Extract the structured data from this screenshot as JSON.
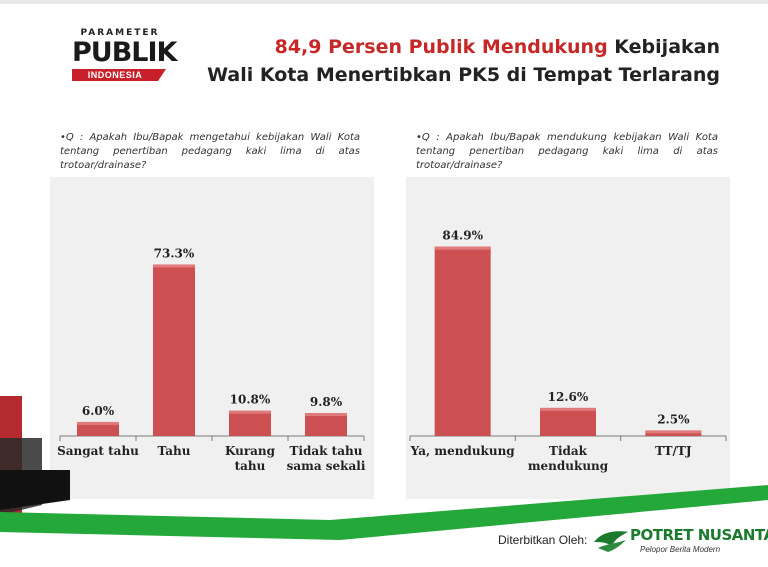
{
  "header": {
    "logo": {
      "kicker": "PARAMETER",
      "wordmark": "PUBLIK",
      "band": "INDONESIA"
    },
    "title_highlight": "84,9 Persen Publik Mendukung",
    "title_rest": " Kebijakan",
    "title_line2": "Wali Kota Menertibkan PK5 di Tempat Terlarang"
  },
  "left": {
    "question": "•Q : Apakah Ibu/Bapak mengetahui kebijakan Wali Kota tentang penertiban pedagang kaki lima di atas trotoar/drainase?"
  },
  "right": {
    "question": "•Q : Apakah Ibu/Bapak mendukung kebijakan Wali Kota tentang penertiban pedagang kaki lima di atas trotoar/drainase?"
  },
  "chart_data": [
    {
      "type": "bar",
      "categories": [
        [
          "Sangat tahu"
        ],
        [
          "Tahu"
        ],
        [
          "Kurang",
          "tahu"
        ],
        [
          "Tidak tahu",
          "sama sekali"
        ]
      ],
      "values": [
        6.0,
        73.3,
        10.8,
        9.8
      ],
      "value_labels": [
        "6.0%",
        "73.3%",
        "10.8%",
        "9.8%"
      ],
      "ylim": [
        0,
        100
      ]
    },
    {
      "type": "bar",
      "categories": [
        [
          "Ya, mendukung"
        ],
        [
          "Tidak",
          "mendukung"
        ],
        [
          "TT/TJ"
        ]
      ],
      "values": [
        84.9,
        12.6,
        2.5
      ],
      "value_labels": [
        "84.9%",
        "12.6%",
        "2.5%"
      ],
      "ylim": [
        0,
        100
      ]
    }
  ],
  "colors": {
    "bar": "#cc4f52",
    "bar_top": "#e07a7b",
    "title_accent": "#c62828",
    "brand_green": "#1b7a2e",
    "deco_green": "#25a83a",
    "deco_red": "#b52a2e"
  },
  "footer": {
    "published_by": "Diterbitkan Oleh:",
    "brand_name": "POTRET NUSANTARA",
    "brand_tagline": "Pelopor Berita Modern",
    "brand_icon": "wings-icon"
  }
}
